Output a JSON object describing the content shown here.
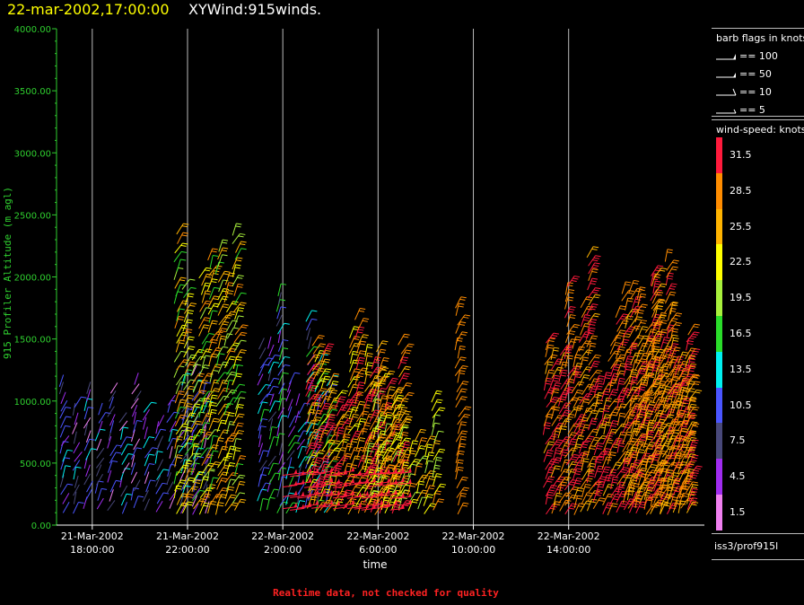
{
  "header": {
    "time_label": "22-mar-2002,17:00:00",
    "product_label": "XYWind:915winds."
  },
  "footer": {
    "quality_note": "Realtime data, not checked for quality"
  },
  "source": "iss3/prof915l",
  "colors": {
    "axis_y": "#2fd02f",
    "axis_x": "#ffffff",
    "gridline": "#bbbbbb",
    "quality_note": "#ff2222"
  },
  "barb_legend": {
    "title": "barb flags in knots",
    "items": [
      {
        "label": "== 100",
        "knots": 100
      },
      {
        "label": "== 50",
        "knots": 50
      },
      {
        "label": "== 10",
        "knots": 10
      },
      {
        "label": "== 5",
        "knots": 5
      }
    ]
  },
  "speed_legend": {
    "title": "wind-speed: knots",
    "bins": [
      {
        "label": "31.5",
        "color": "#ff1a3c"
      },
      {
        "label": "28.5",
        "color": "#ff8c00"
      },
      {
        "label": "25.5",
        "color": "#ffb300"
      },
      {
        "label": "22.5",
        "color": "#ffff00"
      },
      {
        "label": "19.5",
        "color": "#a8f03c"
      },
      {
        "label": "16.5",
        "color": "#2adc2a"
      },
      {
        "label": "13.5",
        "color": "#00f0f0"
      },
      {
        "label": "10.5",
        "color": "#4a55ff"
      },
      {
        "label": "7.5",
        "color": "#48487a"
      },
      {
        "label": "4.5",
        "color": "#a02cf0"
      },
      {
        "label": "1.5",
        "color": "#f080f0"
      }
    ]
  },
  "chart_data": {
    "type": "scatter",
    "title": "22-mar-2002,17:00:00  XYWind:915winds.",
    "ylabel": "915 Profiler Altitude (m agl)",
    "xlabel": "time",
    "ylim": [
      0,
      4000
    ],
    "xlim_hours": [
      -7.5,
      19.7
    ],
    "yticks": [
      "4000.00",
      "3500.00",
      "3000.00",
      "2500.00",
      "2000.00",
      "1500.00",
      "1000.00",
      "500.00",
      "0.00"
    ],
    "xticks": [
      {
        "hour": -6,
        "date": "21-Mar-2002",
        "time": "18:00:00"
      },
      {
        "hour": -2,
        "date": "21-Mar-2002",
        "time": "22:00:00"
      },
      {
        "hour": 2,
        "date": "22-Mar-2002",
        "time": "2:00:00"
      },
      {
        "hour": 6,
        "date": "22-Mar-2002",
        "time": "6:00:00"
      },
      {
        "hour": 10,
        "date": "22-Mar-2002",
        "time": "10:00:00"
      },
      {
        "hour": 14,
        "date": "22-Mar-2002",
        "time": "14:00:00"
      }
    ],
    "grid": "vertical-at-ticks",
    "legend_position": "right",
    "series_note": "wind barbs colored by wind speed (knots)"
  }
}
